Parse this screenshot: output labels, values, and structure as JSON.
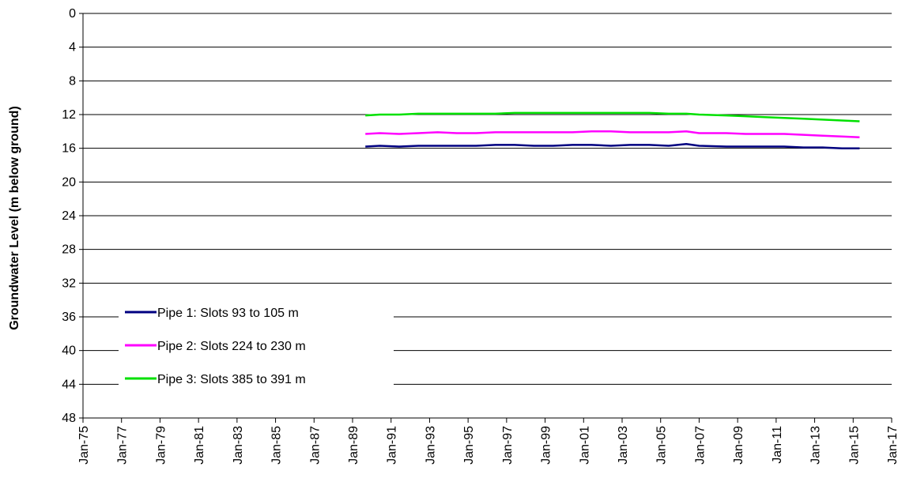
{
  "chart_data": {
    "type": "line",
    "title": "",
    "xlabel": "",
    "ylabel": "Groundwater Level (m below ground)",
    "x_ticks": [
      "Jan-75",
      "Jan-77",
      "Jan-79",
      "Jan-81",
      "Jan-83",
      "Jan-85",
      "Jan-87",
      "Jan-89",
      "Jan-91",
      "Jan-93",
      "Jan-95",
      "Jan-97",
      "Jan-99",
      "Jan-01",
      "Jan-03",
      "Jan-05",
      "Jan-07",
      "Jan-09",
      "Jan-11",
      "Jan-13",
      "Jan-15",
      "Jan-17"
    ],
    "xlim": [
      "Jan-75",
      "Jan-17"
    ],
    "ylim": [
      0,
      48
    ],
    "y_ticks": [
      0,
      4,
      8,
      12,
      16,
      20,
      24,
      28,
      32,
      36,
      40,
      44,
      48
    ],
    "y_inverted": true,
    "grid": "horizontal",
    "legend_position": "bottom-left",
    "series": [
      {
        "name": "Pipe 1: Slots 93 to 105 m",
        "color": "#000080",
        "x": [
          "1989-09",
          "1990-06",
          "1991-06",
          "1992-06",
          "1993-06",
          "1994-06",
          "1995-06",
          "1996-06",
          "1997-06",
          "1998-06",
          "1999-06",
          "2000-06",
          "2001-06",
          "2002-06",
          "2003-06",
          "2004-06",
          "2005-06",
          "2006-05",
          "2007-01",
          "2008-06",
          "2009-06",
          "2010-06",
          "2011-06",
          "2012-06",
          "2013-06",
          "2014-06",
          "2015-05"
        ],
        "values": [
          15.8,
          15.7,
          15.8,
          15.7,
          15.7,
          15.7,
          15.7,
          15.6,
          15.6,
          15.7,
          15.7,
          15.6,
          15.6,
          15.7,
          15.6,
          15.6,
          15.7,
          15.5,
          15.7,
          15.8,
          15.8,
          15.8,
          15.8,
          15.9,
          15.9,
          16.0,
          16.0
        ]
      },
      {
        "name": "Pipe 2: Slots 224 to 230 m",
        "color": "#FF00FF",
        "x": [
          "1989-09",
          "1990-06",
          "1991-06",
          "1992-06",
          "1993-06",
          "1994-06",
          "1995-06",
          "1996-06",
          "1997-06",
          "1998-06",
          "1999-06",
          "2000-06",
          "2001-06",
          "2002-06",
          "2003-06",
          "2004-06",
          "2005-06",
          "2006-05",
          "2007-01",
          "2008-06",
          "2009-06",
          "2010-06",
          "2011-06",
          "2012-06",
          "2013-06",
          "2014-06",
          "2015-05"
        ],
        "values": [
          14.3,
          14.2,
          14.3,
          14.2,
          14.1,
          14.2,
          14.2,
          14.1,
          14.1,
          14.1,
          14.1,
          14.1,
          14.0,
          14.0,
          14.1,
          14.1,
          14.1,
          14.0,
          14.2,
          14.2,
          14.3,
          14.3,
          14.3,
          14.4,
          14.5,
          14.6,
          14.7
        ]
      },
      {
        "name": "Pipe 3: Slots 385 to 391 m",
        "color": "#00E000",
        "x": [
          "1989-09",
          "1990-06",
          "1991-06",
          "1992-06",
          "1993-06",
          "1994-06",
          "1995-06",
          "1996-06",
          "1997-06",
          "1998-06",
          "1999-06",
          "2000-06",
          "2001-06",
          "2002-06",
          "2003-06",
          "2004-06",
          "2005-06",
          "2006-05",
          "2007-01",
          "2008-06",
          "2009-06",
          "2010-06",
          "2011-06",
          "2012-06",
          "2013-06",
          "2014-06",
          "2015-05"
        ],
        "values": [
          12.1,
          12.0,
          12.0,
          11.9,
          11.9,
          11.9,
          11.9,
          11.9,
          11.8,
          11.8,
          11.8,
          11.8,
          11.8,
          11.8,
          11.8,
          11.8,
          11.9,
          11.9,
          12.0,
          12.1,
          12.2,
          12.3,
          12.4,
          12.5,
          12.6,
          12.7,
          12.8
        ]
      }
    ]
  }
}
